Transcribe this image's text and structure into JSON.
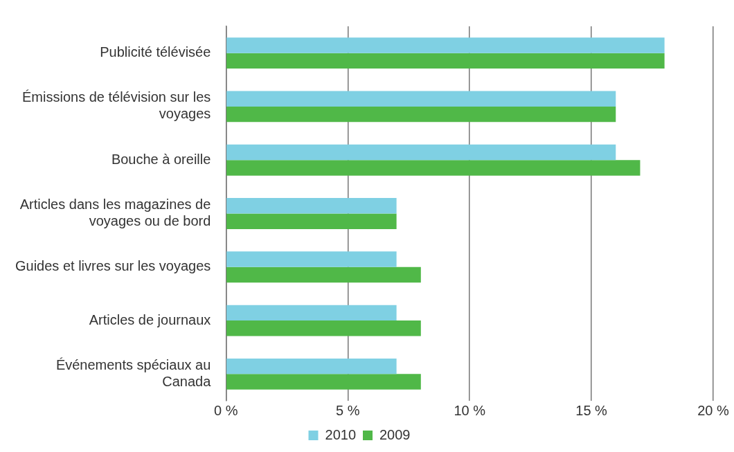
{
  "chart_data": {
    "type": "bar",
    "orientation": "horizontal",
    "categories": [
      "Publicité télévisée",
      "Émissions de télévision sur les voyages",
      "Bouche à oreille",
      "Articles dans les magazines de voyages ou de bord",
      "Guides et livres sur les voyages",
      "Articles de journaux",
      "Événements spéciaux au Canada"
    ],
    "series": [
      {
        "name": "2010",
        "color": "#7fd0e3",
        "values": [
          18,
          16,
          16,
          7,
          7,
          7,
          7
        ]
      },
      {
        "name": "2009",
        "color": "#50b848",
        "values": [
          18,
          16,
          17,
          7,
          8,
          8,
          8
        ]
      }
    ],
    "xlim": [
      0,
      20
    ],
    "xticks": [
      {
        "value": 0,
        "label": "0 %"
      },
      {
        "value": 5,
        "label": "5 %"
      },
      {
        "value": 10,
        "label": "10 %"
      },
      {
        "value": 15,
        "label": "15 %"
      },
      {
        "value": 20,
        "label": "20 %"
      }
    ],
    "grid": "x",
    "legend": "bottom"
  }
}
